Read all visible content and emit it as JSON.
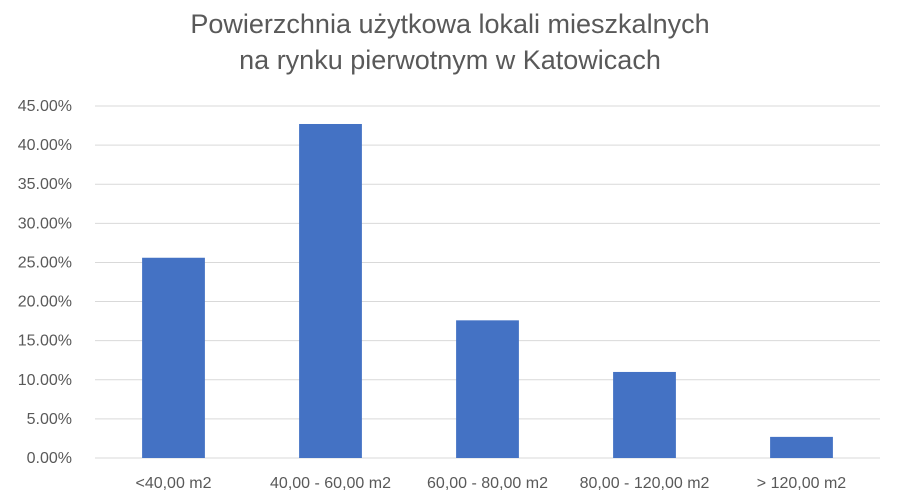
{
  "chart_data": {
    "type": "bar",
    "title_lines": [
      "Powierzchnia użytkowa lokali mieszkalnych",
      "na rynku pierwotnym w Katowicach"
    ],
    "categories": [
      "<40,00 m2",
      "40,00 - 60,00 m2",
      "60,00 - 80,00 m2",
      "80,00 - 120,00 m2",
      "> 120,00 m2"
    ],
    "values": [
      25.6,
      42.7,
      17.6,
      11.0,
      2.7
    ],
    "value_unit": "%",
    "ylim": [
      0,
      45
    ],
    "ytick_labels": [
      "0.00%",
      "5.00%",
      "10.00%",
      "15.00%",
      "20.00%",
      "25.00%",
      "30.00%",
      "35.00%",
      "40.00%",
      "45.00%"
    ],
    "grid": true,
    "legend": "none",
    "bar_color": "#4472C4",
    "grid_color": "#D9D9D9"
  }
}
